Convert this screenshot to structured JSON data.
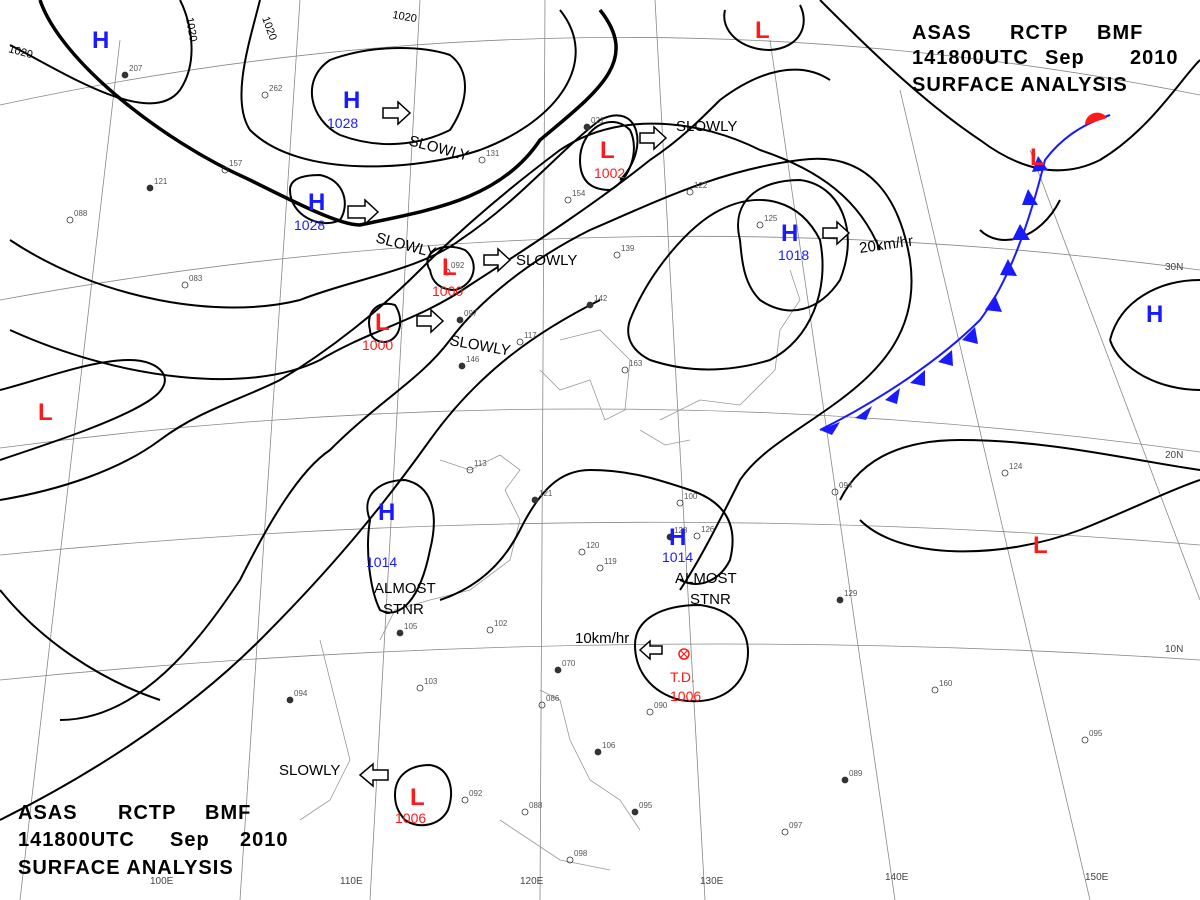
{
  "header": {
    "line1": [
      "ASAS",
      "RCTP",
      "BMF"
    ],
    "line2": [
      "141800UTC",
      "Sep",
      "2010"
    ],
    "line3": "SURFACE ANALYSIS"
  },
  "isobar_labels": [
    "1020",
    "1020",
    "1020",
    "1020"
  ],
  "pressure_centers": [
    {
      "type": "H",
      "value": "1028"
    },
    {
      "type": "H",
      "value": "1028"
    },
    {
      "type": "H",
      "value": "1018"
    },
    {
      "type": "H",
      "value": "1014"
    },
    {
      "type": "H",
      "value": "1014"
    },
    {
      "type": "H",
      "value": ""
    },
    {
      "type": "H",
      "value": ""
    },
    {
      "type": "L",
      "value": "1002"
    },
    {
      "type": "L",
      "value": "1000"
    },
    {
      "type": "L",
      "value": "1000"
    },
    {
      "type": "L",
      "value": "1006"
    },
    {
      "type": "L",
      "value": ""
    },
    {
      "type": "L",
      "value": ""
    },
    {
      "type": "L",
      "value": ""
    },
    {
      "type": "L",
      "value": ""
    }
  ],
  "tropical_depression": {
    "label": "T.D.",
    "value": "1006",
    "movement": "10km/hr"
  },
  "movement_labels": [
    "SLOWLY",
    "SLOWLY",
    "SLOWLY",
    "SLOWLY",
    "SLOWLY",
    "SLOWLY",
    "20km/hr",
    "ALMOST",
    "STNR",
    "ALMOST",
    "STNR"
  ],
  "lon_ticks": [
    "100E",
    "110E",
    "120E",
    "130E",
    "140E",
    "150E"
  ],
  "lat_ticks": [
    "30N",
    "20N",
    "10N"
  ],
  "colors": {
    "high": "#1a1aff",
    "low": "#ff1a1a",
    "front": "#1a1aff",
    "grid": "#888888",
    "isobar": "#000000"
  },
  "stations": [
    "207",
    "262",
    "157",
    "121",
    "088",
    "083",
    "142",
    "139",
    "122",
    "097",
    "117",
    "113",
    "121",
    "120",
    "119",
    "105",
    "102",
    "103",
    "094",
    "092",
    "088",
    "095",
    "097",
    "098",
    "106",
    "090",
    "086",
    "070",
    "094",
    "124",
    "129",
    "160",
    "095",
    "089",
    "100",
    "126",
    "128",
    "125",
    "163",
    "146",
    "131",
    "154",
    "021",
    "092",
    "044"
  ]
}
